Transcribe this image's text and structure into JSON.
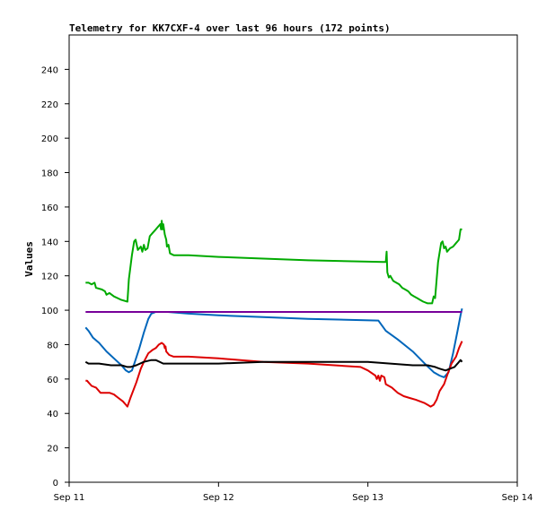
{
  "chart_data": {
    "type": "line",
    "title": "Telemetry for KK7CXF-4 over last 96 hours (172 points)",
    "xlabel": "",
    "ylabel": "Values",
    "x_domain": [
      "Sep 11",
      "Sep 14"
    ],
    "ylim": [
      0,
      260
    ],
    "x_ticks": [
      {
        "label": "Sep 11",
        "value": 0
      },
      {
        "label": "Sep 12",
        "value": 1
      },
      {
        "label": "Sep 13",
        "value": 2
      },
      {
        "label": "Sep 14",
        "value": 3
      }
    ],
    "y_ticks": [
      0,
      20,
      40,
      60,
      80,
      100,
      120,
      140,
      160,
      180,
      200,
      220,
      240
    ],
    "grid": false,
    "series": [
      {
        "color": "#00aa00",
        "points": [
          [
            0.11,
            116
          ],
          [
            0.13,
            116
          ],
          [
            0.15,
            115
          ],
          [
            0.17,
            116
          ],
          [
            0.18,
            113
          ],
          [
            0.22,
            112
          ],
          [
            0.24,
            111
          ],
          [
            0.25,
            109
          ],
          [
            0.27,
            110
          ],
          [
            0.3,
            108
          ],
          [
            0.35,
            106
          ],
          [
            0.39,
            105
          ],
          [
            0.4,
            118
          ],
          [
            0.42,
            132
          ],
          [
            0.435,
            140
          ],
          [
            0.445,
            141
          ],
          [
            0.46,
            135
          ],
          [
            0.48,
            137
          ],
          [
            0.49,
            134
          ],
          [
            0.5,
            138
          ],
          [
            0.51,
            135
          ],
          [
            0.525,
            136
          ],
          [
            0.54,
            143
          ],
          [
            0.56,
            145
          ],
          [
            0.58,
            147
          ],
          [
            0.6,
            149
          ],
          [
            0.61,
            150
          ],
          [
            0.615,
            147
          ],
          [
            0.62,
            152
          ],
          [
            0.625,
            147
          ],
          [
            0.63,
            150
          ],
          [
            0.64,
            144
          ],
          [
            0.65,
            141
          ],
          [
            0.655,
            137
          ],
          [
            0.665,
            138
          ],
          [
            0.675,
            133
          ],
          [
            0.7,
            132
          ],
          [
            0.8,
            132
          ],
          [
            1.0,
            131
          ],
          [
            1.3,
            130
          ],
          [
            1.6,
            129
          ],
          [
            2.1,
            128
          ],
          [
            2.12,
            128
          ],
          [
            2.125,
            134
          ],
          [
            2.13,
            122
          ],
          [
            2.14,
            119
          ],
          [
            2.15,
            120
          ],
          [
            2.17,
            117
          ],
          [
            2.19,
            116
          ],
          [
            2.21,
            115
          ],
          [
            2.23,
            113
          ],
          [
            2.25,
            112
          ],
          [
            2.27,
            111
          ],
          [
            2.29,
            109
          ],
          [
            2.31,
            108
          ],
          [
            2.33,
            107
          ],
          [
            2.35,
            106
          ],
          [
            2.37,
            105
          ],
          [
            2.4,
            104
          ],
          [
            2.43,
            104
          ],
          [
            2.44,
            108
          ],
          [
            2.45,
            107
          ],
          [
            2.47,
            128
          ],
          [
            2.49,
            139
          ],
          [
            2.5,
            140
          ],
          [
            2.51,
            136
          ],
          [
            2.52,
            137
          ],
          [
            2.53,
            134
          ],
          [
            2.55,
            136
          ],
          [
            2.57,
            137
          ],
          [
            2.59,
            139
          ],
          [
            2.61,
            141
          ],
          [
            2.62,
            147
          ],
          [
            2.63,
            147
          ]
        ]
      },
      {
        "color": "#0066bb",
        "points": [
          [
            0.11,
            90
          ],
          [
            0.13,
            88
          ],
          [
            0.16,
            84
          ],
          [
            0.2,
            81
          ],
          [
            0.25,
            76
          ],
          [
            0.3,
            72
          ],
          [
            0.35,
            68
          ],
          [
            0.38,
            65
          ],
          [
            0.4,
            64
          ],
          [
            0.42,
            65
          ],
          [
            0.44,
            70
          ],
          [
            0.47,
            78
          ],
          [
            0.5,
            87
          ],
          [
            0.53,
            95
          ],
          [
            0.55,
            98
          ],
          [
            0.58,
            99
          ],
          [
            0.62,
            99
          ],
          [
            0.66,
            99
          ],
          [
            0.8,
            98
          ],
          [
            1.0,
            97
          ],
          [
            1.3,
            96
          ],
          [
            1.6,
            95
          ],
          [
            2.07,
            94
          ],
          [
            2.12,
            88
          ],
          [
            2.2,
            83
          ],
          [
            2.3,
            76
          ],
          [
            2.38,
            69
          ],
          [
            2.44,
            64
          ],
          [
            2.48,
            62
          ],
          [
            2.51,
            61
          ],
          [
            2.54,
            64
          ],
          [
            2.57,
            75
          ],
          [
            2.6,
            88
          ],
          [
            2.62,
            97
          ],
          [
            2.63,
            101
          ]
        ]
      },
      {
        "color": "#dd0000",
        "points": [
          [
            0.11,
            59
          ],
          [
            0.12,
            59
          ],
          [
            0.13,
            58
          ],
          [
            0.15,
            56
          ],
          [
            0.18,
            55
          ],
          [
            0.21,
            52
          ],
          [
            0.24,
            52
          ],
          [
            0.27,
            52
          ],
          [
            0.3,
            51
          ],
          [
            0.33,
            49
          ],
          [
            0.36,
            47
          ],
          [
            0.38,
            45
          ],
          [
            0.39,
            44
          ],
          [
            0.41,
            49
          ],
          [
            0.45,
            58
          ],
          [
            0.48,
            66
          ],
          [
            0.5,
            70
          ],
          [
            0.53,
            75
          ],
          [
            0.56,
            77
          ],
          [
            0.58,
            78
          ],
          [
            0.6,
            80
          ],
          [
            0.62,
            81
          ],
          [
            0.635,
            80
          ],
          [
            0.64,
            78
          ],
          [
            0.645,
            79
          ],
          [
            0.65,
            76
          ],
          [
            0.67,
            74
          ],
          [
            0.7,
            73
          ],
          [
            0.8,
            73
          ],
          [
            1.0,
            72
          ],
          [
            1.3,
            70
          ],
          [
            1.6,
            69
          ],
          [
            1.95,
            67
          ],
          [
            2.0,
            65
          ],
          [
            2.05,
            62
          ],
          [
            2.06,
            60
          ],
          [
            2.07,
            62
          ],
          [
            2.08,
            59
          ],
          [
            2.09,
            62
          ],
          [
            2.11,
            61
          ],
          [
            2.12,
            57
          ],
          [
            2.16,
            55
          ],
          [
            2.2,
            52
          ],
          [
            2.24,
            50
          ],
          [
            2.28,
            49
          ],
          [
            2.32,
            48
          ],
          [
            2.35,
            47
          ],
          [
            2.38,
            46
          ],
          [
            2.4,
            45
          ],
          [
            2.42,
            44
          ],
          [
            2.44,
            45
          ],
          [
            2.46,
            48
          ],
          [
            2.48,
            53
          ],
          [
            2.51,
            57
          ],
          [
            2.53,
            62
          ],
          [
            2.56,
            69
          ],
          [
            2.59,
            73
          ],
          [
            2.61,
            78
          ],
          [
            2.63,
            82
          ]
        ]
      },
      {
        "color": "#000000",
        "points": [
          [
            0.11,
            70
          ],
          [
            0.13,
            69
          ],
          [
            0.2,
            69
          ],
          [
            0.28,
            68
          ],
          [
            0.35,
            68
          ],
          [
            0.39,
            67
          ],
          [
            0.41,
            67
          ],
          [
            0.45,
            68
          ],
          [
            0.5,
            70
          ],
          [
            0.55,
            71
          ],
          [
            0.58,
            71
          ],
          [
            0.63,
            69
          ],
          [
            0.8,
            69
          ],
          [
            1.0,
            69
          ],
          [
            1.3,
            70
          ],
          [
            1.6,
            70
          ],
          [
            1.8,
            70
          ],
          [
            2.0,
            70
          ],
          [
            2.15,
            69
          ],
          [
            2.3,
            68
          ],
          [
            2.4,
            68
          ],
          [
            2.45,
            67
          ],
          [
            2.48,
            66
          ],
          [
            2.52,
            65
          ],
          [
            2.55,
            66
          ],
          [
            2.58,
            67
          ],
          [
            2.6,
            69
          ],
          [
            2.62,
            71
          ],
          [
            2.63,
            70
          ]
        ]
      },
      {
        "color": "#770099",
        "points": [
          [
            0.11,
            99
          ],
          [
            2.63,
            99
          ]
        ]
      }
    ]
  }
}
